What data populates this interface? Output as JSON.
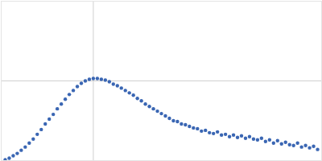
{
  "chart_data": {
    "type": "scatter",
    "x": [
      5,
      10,
      15,
      20,
      25,
      30,
      35,
      40,
      45,
      50,
      55,
      60,
      65,
      70,
      75,
      80,
      85,
      90,
      95,
      100,
      105,
      110,
      115,
      120,
      125,
      130,
      135,
      140,
      145,
      150,
      155,
      160,
      165,
      170,
      175,
      180,
      185,
      190,
      195,
      200,
      205,
      210,
      215,
      220,
      225,
      230,
      235,
      240,
      245,
      250,
      255,
      260,
      265,
      270,
      275,
      280,
      285,
      290,
      295,
      300,
      305,
      310,
      315,
      320,
      325,
      330,
      335,
      340,
      345,
      350,
      355,
      360,
      365,
      370,
      375,
      380,
      385,
      390,
      395
    ],
    "values": [
      1,
      3,
      6,
      9,
      13,
      17,
      22,
      27,
      33,
      39,
      46,
      52,
      58,
      65,
      71,
      77,
      83,
      88,
      93,
      97,
      100,
      102,
      103,
      103,
      102,
      101,
      99,
      96,
      94,
      91,
      88,
      85,
      82,
      78,
      75,
      71,
      68,
      65,
      62,
      59,
      56,
      53,
      50,
      49,
      46,
      45,
      43,
      41,
      40,
      37,
      38,
      35,
      34,
      36,
      32,
      33,
      30,
      32,
      29,
      31,
      28,
      30,
      27,
      26,
      28,
      24,
      26,
      22,
      25,
      21,
      23,
      20,
      19,
      22,
      17,
      19,
      16,
      18,
      14
    ],
    "color": "#3a66b3",
    "marker": "circle",
    "xlim": [
      0,
      400
    ],
    "ylim": [
      0,
      200
    ],
    "xticks": [
      115
    ],
    "yticks": [
      100
    ],
    "grid": true,
    "tick_labels": false
  }
}
